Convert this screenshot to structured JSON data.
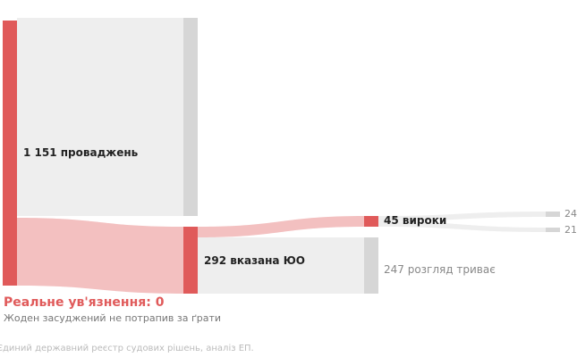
{
  "colors": {
    "accent": "#e05a5a",
    "accent_light": "#f3c0c0",
    "neutral_node": "#d6d6d6",
    "neutral_flow": "#eeeeee"
  },
  "nodes": {
    "proceedings": {
      "label": "1 151 проваджень",
      "value": 1151
    },
    "indicated_oo": {
      "label": "292 вказана ЮО",
      "value": 292
    },
    "verdicts": {
      "label": "45 вироки",
      "value": 45
    },
    "ongoing": {
      "label": "247 розгляд триває",
      "value": 247
    },
    "verdict_a": {
      "label": "24",
      "value": 24
    },
    "verdict_b": {
      "label": "21",
      "value": 21
    }
  },
  "headline": "Реальне ув'язнення: 0",
  "subline": "Жоден засуджений не потрапив за ґрати",
  "source": "Єдиний державний реєстр судових рішень, аналіз ЕП."
}
